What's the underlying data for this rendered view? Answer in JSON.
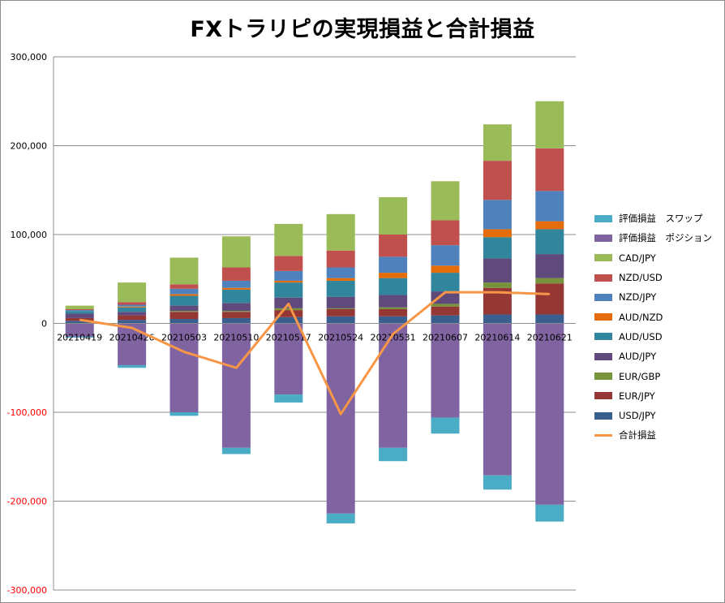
{
  "chart_data": {
    "type": "bar",
    "stacked": true,
    "title": "FXトラリピの実現損益と合計損益",
    "categories": [
      "20210419",
      "20210426",
      "20210503",
      "20210510",
      "20210517",
      "20210524",
      "20210531",
      "20210607",
      "20210614",
      "20210621"
    ],
    "ylim": [
      -300000,
      300000
    ],
    "yticks": [
      "300,000",
      "200,000",
      "100,000",
      "0",
      "-100,000",
      "-200,000",
      "-300,000"
    ],
    "grid": true,
    "legend_position": "right",
    "series": [
      {
        "name": "USD/JPY",
        "color": "#3a5f8f",
        "values": [
          3000,
          4000,
          5000,
          6000,
          7000,
          8000,
          8000,
          9000,
          10000,
          10000
        ]
      },
      {
        "name": "EUR/JPY",
        "color": "#953735",
        "values": [
          3000,
          5000,
          8000,
          7000,
          8000,
          8000,
          8000,
          10000,
          30000,
          35000
        ]
      },
      {
        "name": "EUR/GBP",
        "color": "#77933c",
        "values": [
          0,
          0,
          1000,
          1000,
          2000,
          1000,
          2000,
          3000,
          6000,
          6000
        ]
      },
      {
        "name": "AUD/JPY",
        "color": "#604a7b",
        "values": [
          5000,
          4000,
          6000,
          9000,
          12000,
          13000,
          14000,
          14000,
          27000,
          27000
        ]
      },
      {
        "name": "AUD/USD",
        "color": "#31859c",
        "values": [
          3000,
          5000,
          11000,
          15000,
          17000,
          18000,
          19000,
          21000,
          24000,
          28000
        ]
      },
      {
        "name": "AUD/NZD",
        "color": "#e46c0a",
        "values": [
          0,
          1000,
          2000,
          2000,
          2000,
          3000,
          6000,
          8000,
          9000,
          9000
        ]
      },
      {
        "name": "NZD/JPY",
        "color": "#4f81bd",
        "values": [
          1000,
          2000,
          6000,
          8000,
          11000,
          12000,
          18000,
          23000,
          33000,
          34000
        ]
      },
      {
        "name": "NZD/USD",
        "color": "#c0504d",
        "values": [
          1000,
          3000,
          5000,
          15000,
          17000,
          19000,
          25000,
          28000,
          44000,
          48000
        ]
      },
      {
        "name": "CAD/JPY",
        "color": "#9bbb59",
        "values": [
          4000,
          22000,
          30000,
          35000,
          36000,
          41000,
          42000,
          44000,
          41000,
          53000
        ]
      },
      {
        "name": "評価損益　ポジション",
        "color": "#8064a2",
        "values": [
          -15000,
          -47000,
          -100000,
          -140000,
          -80000,
          -214000,
          -140000,
          -106000,
          -171000,
          -204000
        ]
      },
      {
        "name": "評価損益　スワップ",
        "color": "#4bacc6",
        "values": [
          -1000,
          -3000,
          -4000,
          -7000,
          -9000,
          -11000,
          -15000,
          -18000,
          -16000,
          -19000
        ]
      }
    ],
    "line_series": {
      "name": "合計損益",
      "color": "#f79646",
      "values": [
        4000,
        -5000,
        -32000,
        -50000,
        22000,
        -102000,
        -12000,
        35000,
        35000,
        33000
      ]
    },
    "legend_order": [
      "評価損益　スワップ",
      "評価損益　ポジション",
      "CAD/JPY",
      "NZD/USD",
      "NZD/JPY",
      "AUD/NZD",
      "AUD/USD",
      "AUD/JPY",
      "EUR/GBP",
      "EUR/JPY",
      "USD/JPY",
      "合計損益"
    ]
  }
}
